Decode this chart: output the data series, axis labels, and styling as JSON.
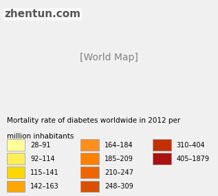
{
  "title_line1": "Mortality rate of diabetes worldwide in 2012 per",
  "title_line2": "million inhabitants",
  "watermark": "zhentun.com",
  "legend_items": [
    {
      "label": "28–91",
      "color": "#FFFF99"
    },
    {
      "label": "92–114",
      "color": "#FFEE55"
    },
    {
      "label": "115–141",
      "color": "#FFD700"
    },
    {
      "label": "142–163",
      "color": "#FFA500"
    },
    {
      "label": "164–184",
      "color": "#FF9020"
    },
    {
      "label": "185–209",
      "color": "#FF8000"
    },
    {
      "label": "210–247",
      "color": "#EE6600"
    },
    {
      "label": "248–309",
      "color": "#D85000"
    },
    {
      "label": "310–404",
      "color": "#C03000"
    },
    {
      "label": "405–1879",
      "color": "#AA1111"
    }
  ],
  "bg_color": "#f0f0f0",
  "map_bg": "#ffffff",
  "title_fontsize": 7.5,
  "legend_fontsize": 7.0,
  "watermark_fontsize": 11,
  "watermark_color": "#555555"
}
